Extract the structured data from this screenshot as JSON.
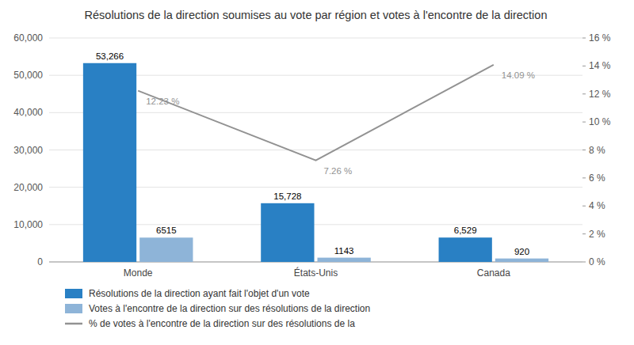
{
  "chart_data": {
    "type": "bar",
    "title": "Résolutions de la direction soumises au vote par région et votes à l'encontre de la direction",
    "categories": [
      "Monde",
      "États-Unis",
      "Canada"
    ],
    "series": [
      {
        "name": "Résolutions de la direction ayant fait l'objet d'un vote",
        "color": "#2980C4",
        "values": [
          53266,
          15728,
          6529
        ],
        "value_labels": [
          "53,266",
          "15,728",
          "6,529"
        ]
      },
      {
        "name": "Votes à l'encontre de la direction sur des résolutions de la direction",
        "color": "#8EB4D8",
        "values": [
          6515,
          1143,
          920
        ]
      },
      {
        "name": "% de votes à l'encontre de la direction sur des résolutions de la",
        "type": "line",
        "axis": "y2",
        "color": "#929292",
        "values": [
          12.23,
          7.26,
          14.09
        ],
        "value_labels": [
          "12.23 %",
          "7.26 %",
          "14.09 %"
        ]
      }
    ],
    "ylim": [
      0,
      60000
    ],
    "yticks": [
      0,
      {
        "value": 10000,
        "label": "10,000"
      },
      {
        "value": 20000,
        "label": "20,000"
      },
      {
        "value": 30000,
        "label": "30,000"
      },
      {
        "value": 40000,
        "label": "40,000"
      },
      {
        "value": 50000,
        "label": "50,000"
      },
      {
        "value": 60000,
        "label": "60,000"
      }
    ],
    "y2lim": [
      0,
      16
    ],
    "y2ticks": [
      {
        "value": 0,
        "label": "0 %"
      },
      {
        "value": 2,
        "label": "2 %"
      },
      {
        "value": 4,
        "label": "4 %"
      },
      {
        "value": 6,
        "label": "6 %"
      },
      {
        "value": 8,
        "label": "8 %"
      },
      {
        "value": 10,
        "label": "10 %"
      },
      {
        "value": 12,
        "label": "12 %"
      },
      {
        "value": 14,
        "label": "14 %"
      },
      {
        "value": 16,
        "label": "16 %"
      }
    ],
    "grid": true,
    "data_labels": true,
    "legend": "bottom"
  }
}
